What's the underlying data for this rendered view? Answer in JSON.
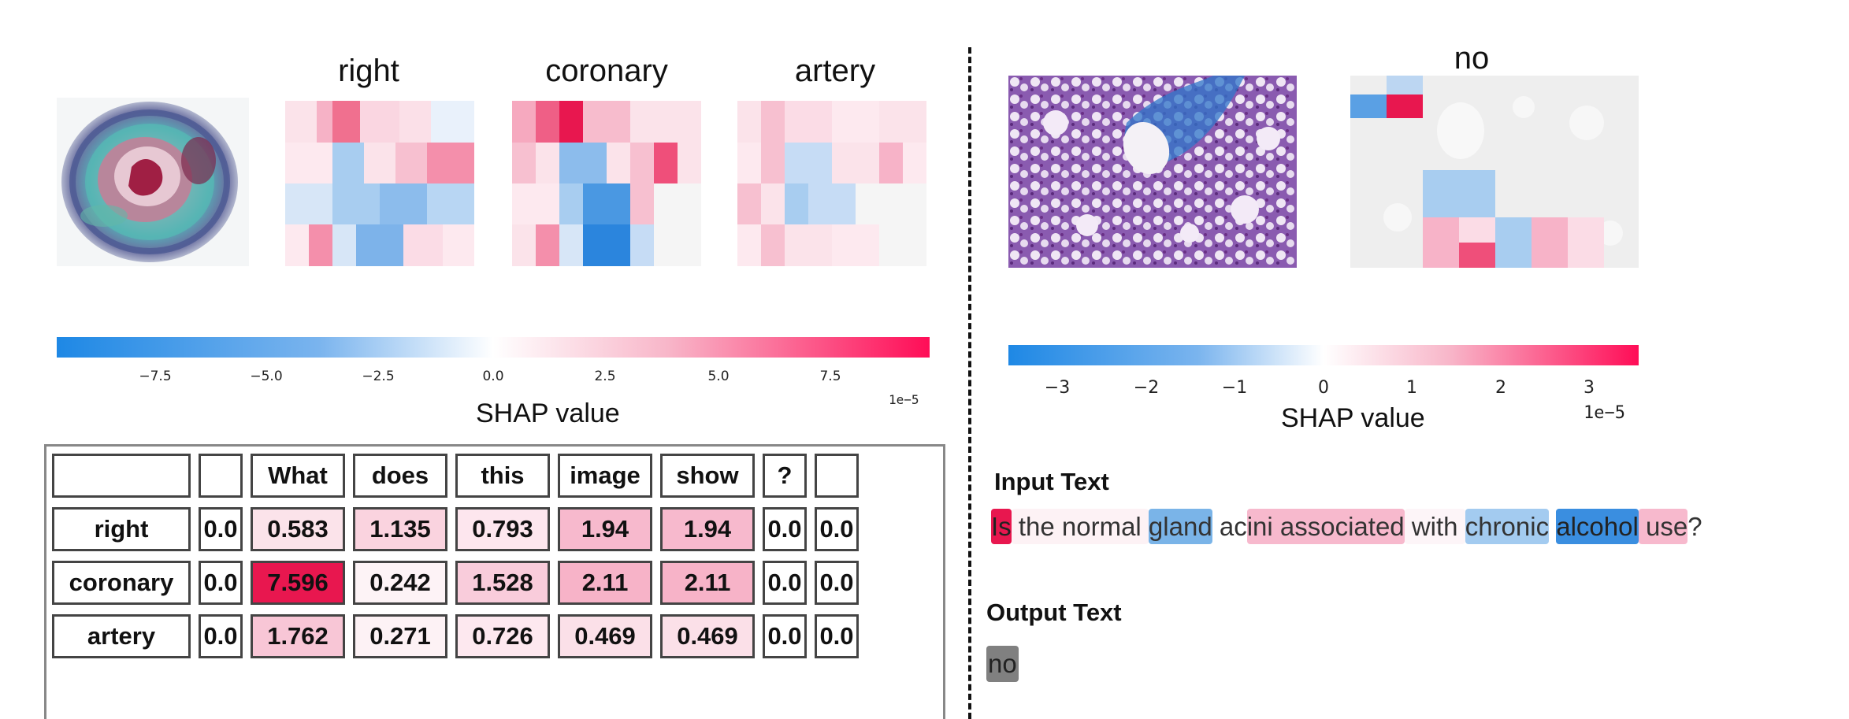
{
  "left_panel": {
    "token_titles": [
      "right",
      "coronary",
      "artery"
    ],
    "colorbar": {
      "ticks": [
        "−7.5",
        "−5.0",
        "−2.5",
        "0.0",
        "2.5",
        "5.0",
        "7.5"
      ],
      "scale": "1e−5",
      "label": "SHAP value",
      "range": [
        -9.75e-05,
        9.75e-05
      ]
    },
    "table": {
      "header": [
        "",
        "",
        "What",
        "does",
        "this",
        "image",
        "show",
        "?",
        ""
      ],
      "rows": [
        {
          "label": "right",
          "cells": [
            "0.0",
            "0.583",
            "1.135",
            "0.793",
            "1.94",
            "1.94",
            "0.0",
            "0.0"
          ]
        },
        {
          "label": "coronary",
          "cells": [
            "0.0",
            "7.596",
            "0.242",
            "1.528",
            "2.11",
            "2.11",
            "0.0",
            "0.0"
          ]
        },
        {
          "label": "artery",
          "cells": [
            "0.0",
            "1.762",
            "0.271",
            "0.726",
            "0.469",
            "0.469",
            "0.0",
            "0.0"
          ]
        }
      ],
      "cell_colors": [
        [
          "#ffffff",
          "#fbe3ea",
          "#fad3df",
          "#fde6ee",
          "#f7b9cd",
          "#f7b9cd",
          "#ffffff",
          "#ffffff"
        ],
        [
          "#ffffff",
          "#e8174f",
          "#fdf3f6",
          "#f9ccdb",
          "#f7b3c8",
          "#f7b3c8",
          "#ffffff",
          "#ffffff"
        ],
        [
          "#ffffff",
          "#f8c6d6",
          "#fdf2f5",
          "#fde8ef",
          "#fbe0e8",
          "#fbe0e8",
          "#ffffff",
          "#ffffff"
        ]
      ]
    }
  },
  "right_panel": {
    "token_title": "no",
    "colorbar": {
      "ticks": [
        "−3",
        "−2",
        "−1",
        "0",
        "1",
        "2",
        "3"
      ],
      "scale": "1e−5",
      "label": "SHAP value",
      "range": [
        -3.55e-05,
        3.55e-05
      ]
    },
    "input_heading": "Input Text",
    "input_tokens": [
      {
        "text": "Is",
        "color": "#e8174f",
        "fg": "#222"
      },
      {
        "text": " the normal ",
        "color": "#fdf2f5",
        "fg": "#333"
      },
      {
        "text": "gland",
        "color": "#7ab4e8",
        "fg": "#333"
      },
      {
        "text": " ac",
        "color": "#ffffff",
        "fg": "#333"
      },
      {
        "text": "ini associated",
        "color": "#f7b9cd",
        "fg": "#333"
      },
      {
        "text": " with ",
        "color": "#fdf5f8",
        "fg": "#333"
      },
      {
        "text": "chronic",
        "color": "#a3cbf0",
        "fg": "#333"
      },
      {
        "text": " ",
        "color": "#ffffff",
        "fg": "#333"
      },
      {
        "text": "alcohol",
        "color": "#3a8ee0",
        "fg": "#222"
      },
      {
        "text": " use",
        "color": "#f7b9cd",
        "fg": "#333"
      },
      {
        "text": "?",
        "color": "#ffffff",
        "fg": "#333"
      }
    ],
    "output_heading": "Output Text",
    "output_token": "no"
  },
  "colors": {
    "negative": "#1e88e5",
    "positive": "#ff0d57",
    "neutral": "#ffffff"
  }
}
